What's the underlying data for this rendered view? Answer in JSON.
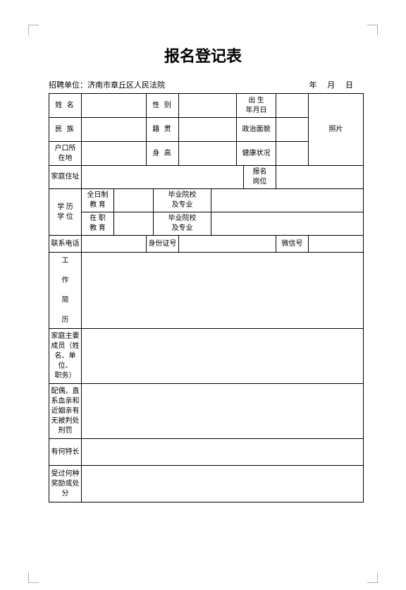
{
  "title": "报名登记表",
  "header": {
    "org_label": "招聘单位：",
    "org_value": "济南市章丘区人民法院",
    "date_y": "年",
    "date_m": "月",
    "date_d": "日"
  },
  "labels": {
    "name": "姓 名",
    "gender": "性 别",
    "birth": "出 生\n年月日",
    "photo": "照片",
    "ethnic": "民 族",
    "native": "籍 贯",
    "politics": "政治面貌",
    "hukou": "户口所\n在地",
    "height": "身 高",
    "health": "健康状况",
    "address": "家庭住址",
    "post": "报名\n岗位",
    "edu": "学 历\n学 位",
    "fulltime": "全日制\n教 育",
    "grad1": "毕业院校\n及专业",
    "parttime": "在 职\n教 育",
    "grad2": "毕业院校\n及专业",
    "phone": "联系电话",
    "idcard": "身份证号",
    "wechat": "微信号",
    "resume": "工\n作\n简\n历",
    "family": "家庭主要\n成员（姓\n名、单位、\n职务）",
    "relatives": "配偶、直\n系血亲和\n近姻亲有\n无被判处\n刑罚",
    "skills": "有何特长",
    "awards": "受过何种\n奖励或处\n分"
  },
  "style": {
    "border_color": "#000000",
    "bg_color": "#ffffff",
    "title_fontsize": 22,
    "cell_fontsize": 10
  }
}
